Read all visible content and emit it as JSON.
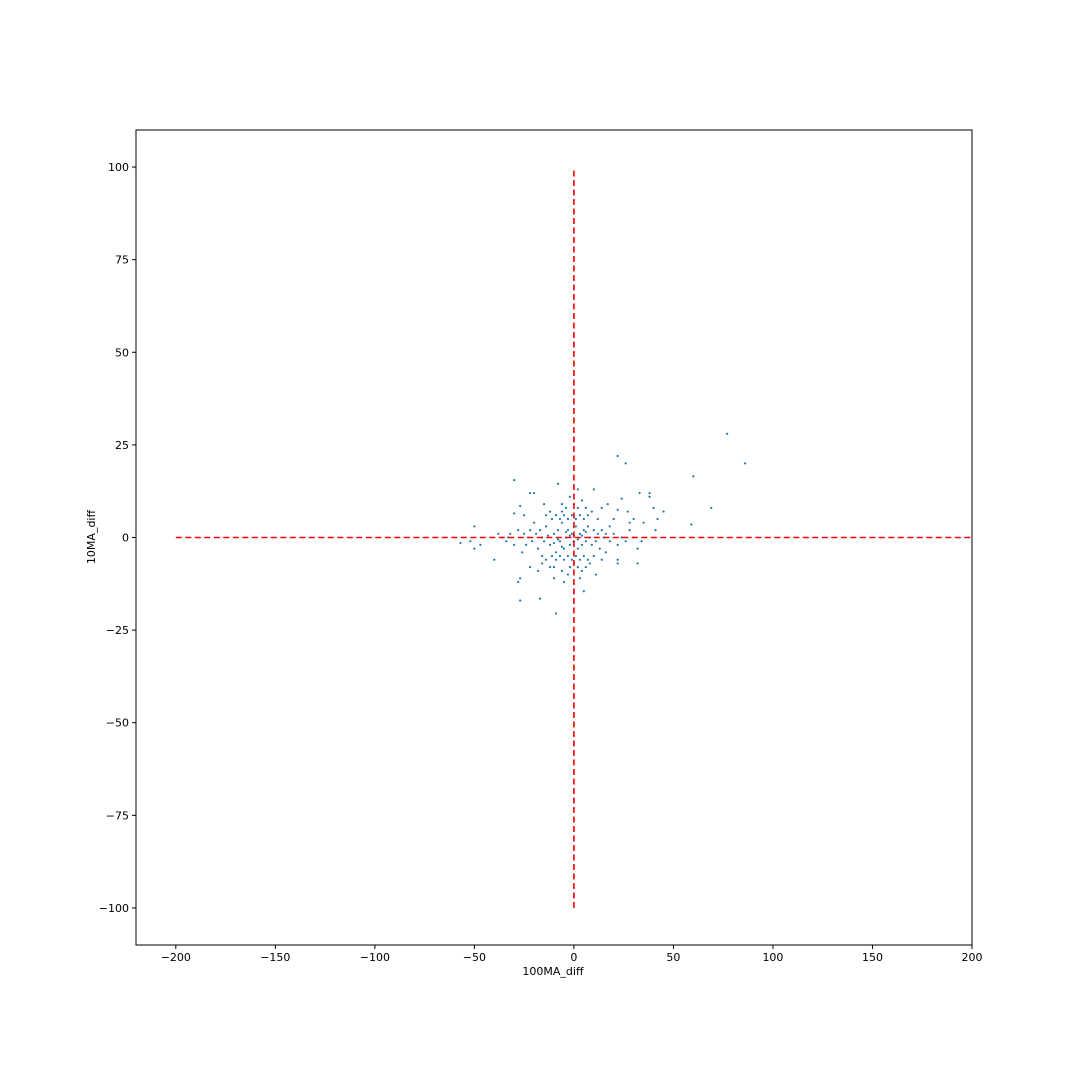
{
  "chart_data": {
    "type": "scatter",
    "title": "",
    "xlabel": "100MA_diff",
    "ylabel": "10MA_diff",
    "xlim": [
      -220,
      200
    ],
    "ylim": [
      -110,
      110
    ],
    "xticks": [
      -200,
      -150,
      -100,
      -50,
      0,
      50,
      100,
      150,
      200
    ],
    "yticks": [
      -100,
      -75,
      -50,
      -25,
      0,
      25,
      50,
      75,
      100
    ],
    "xtick_labels": [
      "−200",
      "−150",
      "−100",
      "−50",
      "0",
      "50",
      "100",
      "150",
      "200"
    ],
    "ytick_labels": [
      "−100",
      "−75",
      "−50",
      "−25",
      "0",
      "25",
      "50",
      "75",
      "100"
    ],
    "grid": false,
    "colors": {
      "points": "#1f77b4",
      "reference_lines": "#ff0000"
    },
    "reference_lines": [
      {
        "orientation": "horizontal",
        "y": 0,
        "x_from": -200,
        "x_to": 200,
        "style": "dashed"
      },
      {
        "orientation": "vertical",
        "x": 0,
        "y_from": -100,
        "y_to": 100,
        "style": "dashed"
      }
    ],
    "series": [
      {
        "points": [
          [
            77,
            28
          ],
          [
            86,
            20
          ],
          [
            60,
            16.5
          ],
          [
            69,
            8
          ],
          [
            59,
            3.5
          ],
          [
            45,
            7
          ],
          [
            42,
            5
          ],
          [
            40,
            8
          ],
          [
            38,
            12
          ],
          [
            38,
            11
          ],
          [
            33,
            12
          ],
          [
            41,
            2
          ],
          [
            35,
            4
          ],
          [
            30,
            5
          ],
          [
            28,
            4
          ],
          [
            26,
            20
          ],
          [
            22,
            22
          ],
          [
            24,
            10.5
          ],
          [
            22,
            7.5
          ],
          [
            22,
            -6
          ],
          [
            22,
            -7
          ],
          [
            32,
            -7
          ],
          [
            32,
            -3
          ],
          [
            27,
            7
          ],
          [
            -30,
            15.5
          ],
          [
            -22,
            12
          ],
          [
            -8,
            14.5
          ],
          [
            -6,
            9
          ],
          [
            -27,
            8.5
          ],
          [
            -30,
            6.5
          ],
          [
            -25,
            6
          ],
          [
            -50,
            3
          ],
          [
            -52,
            -1
          ],
          [
            -57,
            -1.5
          ],
          [
            -50,
            -3
          ],
          [
            -47,
            -2
          ],
          [
            -40,
            -6
          ],
          [
            -33,
            0
          ],
          [
            -27,
            -11
          ],
          [
            -28,
            -12
          ],
          [
            -27,
            -17
          ],
          [
            -17,
            -16.5
          ],
          [
            -9,
            -20.5
          ],
          [
            -10,
            -11
          ],
          [
            -5,
            -12
          ],
          [
            -3,
            -10
          ],
          [
            5,
            -14.5
          ],
          [
            11,
            -10
          ],
          [
            3,
            -11
          ],
          [
            -20,
            12
          ],
          [
            2,
            13
          ],
          [
            10,
            13
          ],
          [
            6,
            8
          ],
          [
            -15,
            9
          ],
          [
            17,
            9
          ],
          [
            14,
            8
          ],
          [
            20,
            5
          ],
          [
            18,
            3
          ],
          [
            -16,
            -7
          ],
          [
            -22,
            -8
          ],
          [
            -18,
            -9
          ],
          [
            -12,
            -8
          ],
          [
            8,
            -7
          ],
          [
            14,
            -6
          ],
          [
            16,
            -4
          ],
          [
            -26,
            -4
          ],
          [
            -24,
            -2
          ],
          [
            -22,
            2
          ],
          [
            -20,
            4
          ],
          [
            -18,
            -3
          ],
          [
            -16,
            0
          ],
          [
            -14,
            3
          ],
          [
            -12,
            -2
          ],
          [
            -10,
            1
          ],
          [
            -9,
            -4
          ],
          [
            -8,
            2
          ],
          [
            -7,
            -1
          ],
          [
            -6,
            4
          ],
          [
            -5,
            -3
          ],
          [
            -4,
            0
          ],
          [
            -3,
            2
          ],
          [
            -2,
            -2
          ],
          [
            -1,
            1
          ],
          [
            0,
            -1
          ],
          [
            1,
            3
          ],
          [
            2,
            -3
          ],
          [
            3,
            1
          ],
          [
            4,
            -2
          ],
          [
            5,
            2
          ],
          [
            6,
            -1
          ],
          [
            7,
            3
          ],
          [
            8,
            0
          ],
          [
            9,
            -2
          ],
          [
            10,
            2
          ],
          [
            11,
            -1
          ],
          [
            12,
            1
          ],
          [
            13,
            -3
          ],
          [
            14,
            2
          ],
          [
            15,
            0
          ],
          [
            16,
            1
          ],
          [
            -11,
            5
          ],
          [
            -9,
            6
          ],
          [
            -7,
            5
          ],
          [
            -5,
            6
          ],
          [
            -3,
            5
          ],
          [
            -1,
            6
          ],
          [
            1,
            5
          ],
          [
            3,
            6
          ],
          [
            5,
            5
          ],
          [
            7,
            6
          ],
          [
            -11,
            -5
          ],
          [
            -9,
            -6
          ],
          [
            -7,
            -5
          ],
          [
            -5,
            -6
          ],
          [
            -3,
            -5
          ],
          [
            -1,
            -6
          ],
          [
            1,
            -5
          ],
          [
            3,
            -6
          ],
          [
            5,
            -5
          ],
          [
            7,
            -6
          ],
          [
            -13,
            0.5
          ],
          [
            -8,
            -0.5
          ],
          [
            -4,
            1.5
          ],
          [
            -2,
            0.5
          ],
          [
            0,
            0.5
          ],
          [
            2,
            -0.5
          ],
          [
            4,
            0.5
          ],
          [
            6,
            1.5
          ],
          [
            -6,
            -2.5
          ],
          [
            -10,
            -1.5
          ],
          [
            -15,
            -1
          ],
          [
            -17,
            2
          ],
          [
            -19,
            1
          ],
          [
            -21,
            -1
          ],
          [
            -23,
            0
          ],
          [
            -25,
            1
          ],
          [
            18,
            -1
          ],
          [
            20,
            1
          ],
          [
            22,
            -2
          ],
          [
            24,
            0
          ],
          [
            26,
            -1
          ],
          [
            28,
            2
          ],
          [
            -28,
            2
          ],
          [
            -30,
            -2
          ],
          [
            -32,
            1
          ],
          [
            -34,
            -1
          ],
          [
            -36,
            0
          ],
          [
            -38,
            1
          ],
          [
            30,
            0
          ],
          [
            34,
            -1
          ],
          [
            -6,
            7
          ],
          [
            -4,
            8
          ],
          [
            0,
            9
          ],
          [
            2,
            8
          ],
          [
            4,
            10
          ],
          [
            -2,
            11
          ],
          [
            9,
            7
          ],
          [
            12,
            5
          ],
          [
            -14,
            6
          ],
          [
            -12,
            7
          ],
          [
            -16,
            -5
          ],
          [
            -14,
            -6
          ],
          [
            -10,
            -8
          ],
          [
            -6,
            -9
          ],
          [
            -2,
            -8
          ],
          [
            0,
            -7
          ],
          [
            2,
            -8
          ],
          [
            4,
            -9
          ],
          [
            6,
            -8
          ],
          [
            10,
            -5
          ]
        ]
      }
    ]
  }
}
